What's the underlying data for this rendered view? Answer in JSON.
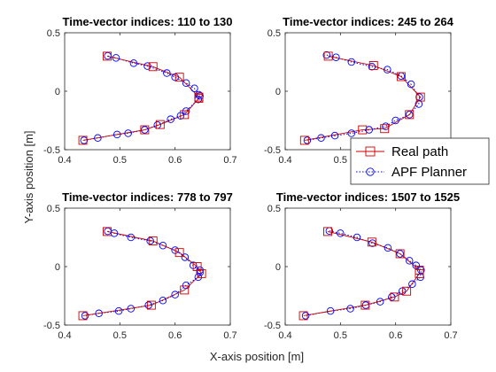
{
  "chart_data": {
    "type": "line",
    "xlabel": "X-axis position [m]",
    "ylabel": "Y-axis position [m]",
    "xlim": [
      0.4,
      0.7
    ],
    "ylim": [
      -0.5,
      0.5
    ],
    "xticks": [
      "0.4",
      "0.5",
      "0.6",
      "0.7"
    ],
    "yticks": [
      "-0.5",
      "0",
      "0.5"
    ],
    "legend": {
      "placement": "right-middle",
      "entries": [
        "Real  path",
        "APF Planner"
      ]
    },
    "series_style": {
      "real": {
        "color": "#cc0000",
        "line": "solid",
        "marker": "square"
      },
      "planner": {
        "color": "#0000ff",
        "line": "dotted",
        "marker": "circle"
      }
    },
    "panels": [
      {
        "title": "Time-vector indices: 110 to 130",
        "real": {
          "x": [
            0.477,
            0.56,
            0.608,
            0.643,
            0.643,
            0.617,
            0.573,
            0.545,
            0.433
          ],
          "y": [
            0.3,
            0.21,
            0.12,
            -0.05,
            -0.06,
            -0.2,
            -0.285,
            -0.33,
            -0.42
          ]
        },
        "planner": {
          "x": [
            0.478,
            0.493,
            0.525,
            0.55,
            0.585,
            0.6,
            0.62,
            0.635,
            0.643,
            0.645,
            0.642,
            0.62,
            0.61,
            0.592,
            0.568,
            0.545,
            0.515,
            0.495,
            0.46,
            0.435
          ],
          "y": [
            0.302,
            0.285,
            0.24,
            0.215,
            0.155,
            0.12,
            0.07,
            0.025,
            -0.03,
            -0.04,
            -0.07,
            -0.17,
            -0.21,
            -0.24,
            -0.29,
            -0.33,
            -0.36,
            -0.37,
            -0.4,
            -0.42
          ]
        }
      },
      {
        "title": "Time-vector indices: 245 to 264",
        "real": {
          "x": [
            0.478,
            0.56,
            0.61,
            0.645,
            0.625,
            0.58,
            0.54,
            0.435
          ],
          "y": [
            0.3,
            0.22,
            0.125,
            -0.05,
            -0.2,
            -0.32,
            -0.33,
            -0.42
          ]
        },
        "planner": {
          "x": [
            0.475,
            0.492,
            0.52,
            0.557,
            0.585,
            0.61,
            0.628,
            0.643,
            0.642,
            0.625,
            0.6,
            0.582,
            0.552,
            0.52,
            0.49,
            0.465,
            0.44
          ],
          "y": [
            0.31,
            0.29,
            0.25,
            0.21,
            0.185,
            0.13,
            0.06,
            -0.05,
            -0.11,
            -0.2,
            -0.25,
            -0.3,
            -0.33,
            -0.36,
            -0.38,
            -0.4,
            -0.42
          ]
        }
      },
      {
        "title": "Time-vector indices: 778 to 797",
        "real": {
          "x": [
            0.477,
            0.56,
            0.608,
            0.64,
            0.648,
            0.617,
            0.557,
            0.433
          ],
          "y": [
            0.3,
            0.22,
            0.12,
            0.0,
            -0.06,
            -0.2,
            -0.33,
            -0.42
          ]
        },
        "planner": {
          "x": [
            0.478,
            0.49,
            0.52,
            0.555,
            0.578,
            0.6,
            0.618,
            0.633,
            0.645,
            0.645,
            0.642,
            0.62,
            0.6,
            0.578,
            0.552,
            0.52,
            0.498,
            0.462,
            0.437
          ],
          "y": [
            0.302,
            0.285,
            0.25,
            0.22,
            0.18,
            0.14,
            0.08,
            0.01,
            -0.03,
            -0.05,
            -0.09,
            -0.16,
            -0.24,
            -0.29,
            -0.33,
            -0.36,
            -0.38,
            -0.4,
            -0.42
          ]
        }
      },
      {
        "title": "Time-vector indices: 1507 to 1525",
        "real": {
          "x": [
            0.477,
            0.557,
            0.608,
            0.643,
            0.643,
            0.62,
            0.598,
            0.545,
            0.433
          ],
          "y": [
            0.3,
            0.21,
            0.11,
            -0.03,
            -0.06,
            -0.21,
            -0.26,
            -0.33,
            -0.42
          ]
        },
        "planner": {
          "x": [
            0.48,
            0.5,
            0.53,
            0.558,
            0.586,
            0.608,
            0.625,
            0.637,
            0.646,
            0.645,
            0.63,
            0.612,
            0.593,
            0.572,
            0.546,
            0.518,
            0.482,
            0.437
          ],
          "y": [
            0.305,
            0.285,
            0.25,
            0.2,
            0.16,
            0.11,
            0.05,
            0.01,
            -0.03,
            -0.09,
            -0.15,
            -0.21,
            -0.26,
            -0.3,
            -0.33,
            -0.36,
            -0.38,
            -0.42
          ]
        }
      }
    ]
  }
}
